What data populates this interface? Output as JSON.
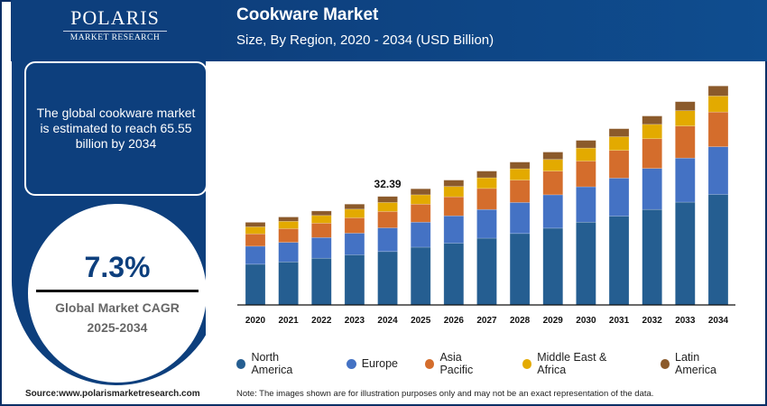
{
  "brand": {
    "logo_main": "POLARIS",
    "logo_sub": "MARKET RESEARCH"
  },
  "header": {
    "title": "Cookware Market",
    "subtitle": "Size, By Region, 2020 - 2034 (USD Billion)"
  },
  "info": {
    "text": "The global cookware market is estimated to reach 65.55 billion by 2034"
  },
  "cagr": {
    "value": "7.3%",
    "label": "Global Market CAGR",
    "period": "2025-2034"
  },
  "footer": {
    "source": "Source:www.polarismarketresearch.com",
    "note": "Note: The images shown are for illustration purposes only and may not be an exact representation of the data."
  },
  "chart_data": {
    "type": "bar",
    "stacked": true,
    "title": "Cookware Market",
    "subtitle": "Size, By Region, 2020 - 2034 (USD Billion)",
    "categories": [
      "2020",
      "2021",
      "2022",
      "2023",
      "2024",
      "2025",
      "2026",
      "2027",
      "2028",
      "2029",
      "2030",
      "2031",
      "2032",
      "2033",
      "2034"
    ],
    "series": [
      {
        "name": "North America",
        "color": "#255e91",
        "values": [
          12.2,
          12.9,
          14.0,
          15.0,
          16.0,
          17.3,
          18.5,
          20.0,
          21.4,
          23.0,
          24.8,
          26.6,
          28.6,
          30.8,
          33.1
        ]
      },
      {
        "name": "Europe",
        "color": "#4472c4",
        "values": [
          5.4,
          5.85,
          6.2,
          6.5,
          7.1,
          7.5,
          8.2,
          8.6,
          9.3,
          10.0,
          10.6,
          11.4,
          12.3,
          13.2,
          14.3
        ]
      },
      {
        "name": "Asia Pacific",
        "color": "#d46d2c",
        "values": [
          3.7,
          4.1,
          4.3,
          4.6,
          4.9,
          5.4,
          5.7,
          6.3,
          6.7,
          7.1,
          7.7,
          8.3,
          8.9,
          9.6,
          10.4
        ]
      },
      {
        "name": "Middle East & Africa",
        "color": "#e3aa00",
        "values": [
          2.1,
          2.2,
          2.3,
          2.6,
          2.7,
          2.8,
          3.1,
          3.2,
          3.4,
          3.5,
          3.9,
          4.1,
          4.3,
          4.6,
          4.8
        ]
      },
      {
        "name": "Latin America",
        "color": "#8b5a2b",
        "values": [
          1.35,
          1.3,
          1.35,
          1.5,
          1.8,
          1.8,
          1.9,
          2.0,
          2.0,
          2.2,
          2.3,
          2.4,
          2.5,
          2.7,
          3.0
        ]
      }
    ],
    "annotations": [
      {
        "category": "2024",
        "label": "32.39"
      }
    ],
    "legend": "bottom",
    "grid": false,
    "y_axis_visible": false,
    "ylim": [
      0,
      70
    ]
  }
}
